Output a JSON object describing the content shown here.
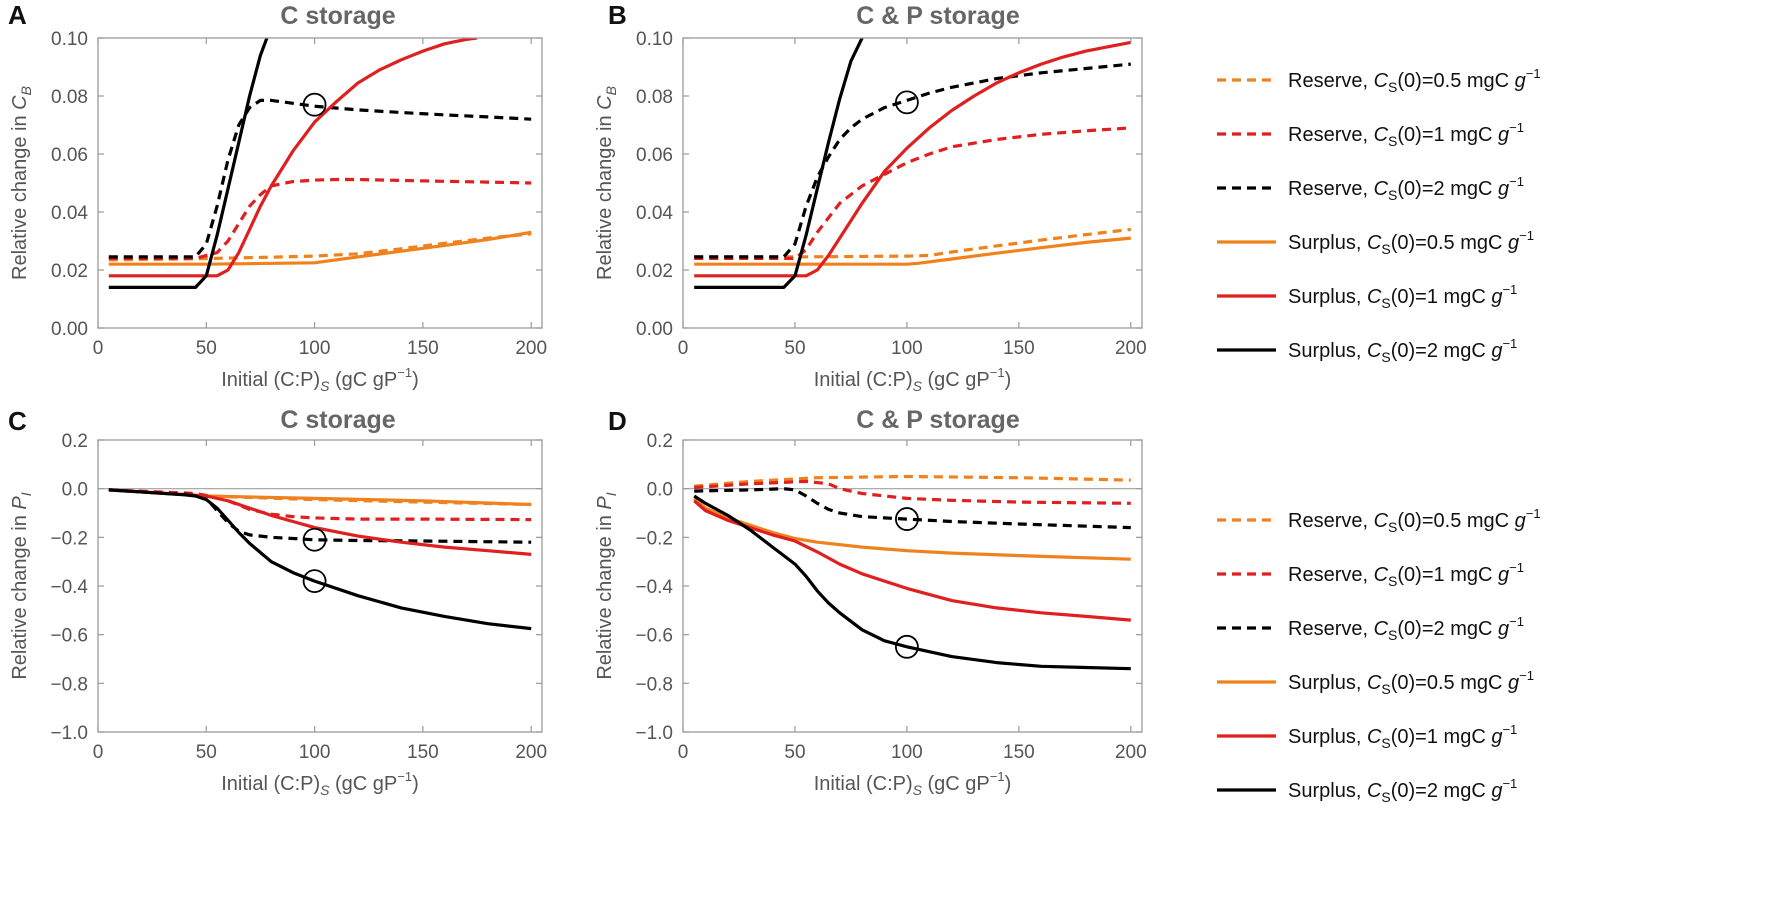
{
  "chart_data": [
    {
      "panel": "A",
      "type": "line",
      "title": "C storage",
      "xlabel": "Initial (C:P)",
      "xlabel_sub": "S",
      "xlabel_unit": "(gC gP",
      "xlabel_unit_sup": "−1",
      "xlabel_unit_end": ")",
      "ylabel": "Relative change in ",
      "ylabel_var": "C",
      "ylabel_sub": "B",
      "xlim": [
        0,
        205
      ],
      "ylim": [
        0.0,
        0.1
      ],
      "xticks": [
        "0",
        "50",
        "100",
        "150",
        "200"
      ],
      "yticks": [
        "0.00",
        "0.02",
        "0.04",
        "0.06",
        "0.08",
        "0.10"
      ],
      "series": [
        {
          "name": "Reserve, CS(0)=0.5 mgC g-1",
          "color": "#F0821E",
          "style": "dashed",
          "x": [
            5,
            40,
            60,
            80,
            100,
            120,
            140,
            160,
            180,
            200
          ],
          "y": [
            0.0235,
            0.0238,
            0.0241,
            0.0244,
            0.0248,
            0.0256,
            0.0273,
            0.0292,
            0.031,
            0.0325
          ]
        },
        {
          "name": "Reserve, CS(0)=1 mgC g-1",
          "color": "#E01F1F",
          "style": "dashed",
          "x": [
            5,
            45,
            55,
            60,
            65,
            70,
            75,
            80,
            90,
            100,
            110,
            120,
            140,
            160,
            180,
            200
          ],
          "y": [
            0.024,
            0.024,
            0.026,
            0.03,
            0.036,
            0.042,
            0.046,
            0.049,
            0.0505,
            0.051,
            0.0512,
            0.0512,
            0.0509,
            0.0506,
            0.0503,
            0.05
          ]
        },
        {
          "name": "Reserve, CS(0)=2 mgC g-1",
          "color": "#000000",
          "style": "dashed",
          "x": [
            5,
            45,
            50,
            55,
            60,
            65,
            70,
            75,
            80,
            90,
            100,
            120,
            140,
            160,
            180,
            200
          ],
          "y": [
            0.0245,
            0.0245,
            0.029,
            0.042,
            0.058,
            0.07,
            0.076,
            0.0785,
            0.0785,
            0.0775,
            0.0765,
            0.0752,
            0.0743,
            0.0735,
            0.0728,
            0.072
          ]
        },
        {
          "name": "Surplus, CS(0)=0.5 mgC g-1",
          "color": "#F0821E",
          "style": "solid",
          "x": [
            5,
            50,
            100,
            105,
            120,
            140,
            160,
            180,
            200
          ],
          "y": [
            0.022,
            0.022,
            0.0225,
            0.023,
            0.0245,
            0.0265,
            0.0285,
            0.0305,
            0.033
          ]
        },
        {
          "name": "Surplus, CS(0)=1 mgC g-1",
          "color": "#E01F1F",
          "style": "solid",
          "x": [
            5,
            55,
            60,
            65,
            70,
            75,
            80,
            90,
            100,
            110,
            120,
            130,
            140,
            150,
            160,
            170,
            175
          ],
          "y": [
            0.018,
            0.018,
            0.02,
            0.026,
            0.034,
            0.042,
            0.049,
            0.061,
            0.071,
            0.078,
            0.0845,
            0.089,
            0.0925,
            0.0955,
            0.098,
            0.0995,
            0.1
          ]
        },
        {
          "name": "Surplus, CS(0)=2 mgC g-1",
          "color": "#000000",
          "style": "solid",
          "x": [
            5,
            45,
            50,
            55,
            60,
            65,
            70,
            75,
            78
          ],
          "y": [
            0.014,
            0.014,
            0.018,
            0.032,
            0.048,
            0.064,
            0.08,
            0.094,
            0.1
          ]
        }
      ],
      "annotations": [
        {
          "type": "circle",
          "x": 100,
          "y": 0.077
        }
      ]
    },
    {
      "panel": "B",
      "type": "line",
      "title": "C & P storage",
      "xlabel": "Initial (C:P)",
      "xlabel_sub": "S",
      "xlabel_unit": "(gC gP",
      "xlabel_unit_sup": "−1",
      "xlabel_unit_end": ")",
      "ylabel": "Relative change in ",
      "ylabel_var": "C",
      "ylabel_sub": "B",
      "xlim": [
        0,
        205
      ],
      "ylim": [
        0.0,
        0.1
      ],
      "xticks": [
        "0",
        "50",
        "100",
        "150",
        "200"
      ],
      "yticks": [
        "0.00",
        "0.02",
        "0.04",
        "0.06",
        "0.08",
        "0.10"
      ],
      "series": [
        {
          "name": "Reserve, CS(0)=0.5 mgC g-1",
          "color": "#F0821E",
          "style": "dashed",
          "x": [
            5,
            50,
            100,
            110,
            120,
            140,
            160,
            180,
            200
          ],
          "y": [
            0.0245,
            0.0245,
            0.0248,
            0.025,
            0.0262,
            0.0283,
            0.0303,
            0.0322,
            0.034
          ]
        },
        {
          "name": "Reserve, CS(0)=1 mgC g-1",
          "color": "#E01F1F",
          "style": "dashed",
          "x": [
            5,
            50,
            55,
            60,
            65,
            70,
            75,
            80,
            90,
            100,
            110,
            120,
            140,
            160,
            180,
            200
          ],
          "y": [
            0.024,
            0.024,
            0.027,
            0.033,
            0.038,
            0.043,
            0.046,
            0.049,
            0.053,
            0.057,
            0.06,
            0.0625,
            0.065,
            0.0668,
            0.068,
            0.069
          ]
        },
        {
          "name": "Reserve, CS(0)=2 mgC g-1",
          "color": "#000000",
          "style": "dashed",
          "x": [
            5,
            45,
            50,
            55,
            60,
            65,
            70,
            75,
            80,
            90,
            100,
            110,
            120,
            140,
            160,
            180,
            200
          ],
          "y": [
            0.0245,
            0.0245,
            0.029,
            0.042,
            0.052,
            0.059,
            0.065,
            0.069,
            0.072,
            0.076,
            0.0785,
            0.081,
            0.083,
            0.086,
            0.088,
            0.0895,
            0.091
          ]
        },
        {
          "name": "Surplus, CS(0)=0.5 mgC g-1",
          "color": "#F0821E",
          "style": "solid",
          "x": [
            5,
            50,
            100,
            105,
            120,
            140,
            160,
            180,
            200
          ],
          "y": [
            0.022,
            0.022,
            0.022,
            0.0223,
            0.0238,
            0.0258,
            0.0277,
            0.0295,
            0.031
          ]
        },
        {
          "name": "Surplus, CS(0)=1 mgC g-1",
          "color": "#E01F1F",
          "style": "solid",
          "x": [
            5,
            55,
            60,
            65,
            70,
            75,
            80,
            90,
            100,
            110,
            120,
            130,
            140,
            150,
            160,
            170,
            180,
            190,
            200
          ],
          "y": [
            0.018,
            0.018,
            0.02,
            0.025,
            0.031,
            0.037,
            0.043,
            0.054,
            0.062,
            0.069,
            0.075,
            0.08,
            0.0845,
            0.088,
            0.091,
            0.0935,
            0.0955,
            0.097,
            0.0985
          ]
        },
        {
          "name": "Surplus, CS(0)=2 mgC g-1",
          "color": "#000000",
          "style": "solid",
          "x": [
            5,
            45,
            50,
            55,
            60,
            65,
            70,
            75,
            80
          ],
          "y": [
            0.014,
            0.014,
            0.018,
            0.032,
            0.048,
            0.064,
            0.079,
            0.092,
            0.1
          ]
        }
      ],
      "annotations": [
        {
          "type": "circle",
          "x": 100,
          "y": 0.0778
        }
      ]
    },
    {
      "panel": "C",
      "type": "line",
      "title": "C storage",
      "xlabel": "Initial (C:P)",
      "xlabel_sub": "S",
      "xlabel_unit": "(gC gP",
      "xlabel_unit_sup": "−1",
      "xlabel_unit_end": ")",
      "ylabel": "Relative change in ",
      "ylabel_var": "P",
      "ylabel_sub": "I",
      "xlim": [
        0,
        205
      ],
      "ylim": [
        -1.0,
        0.2
      ],
      "xticks": [
        "0",
        "50",
        "100",
        "150",
        "200"
      ],
      "yticks": [
        "−1.0",
        "−0.8",
        "−0.6",
        "−0.4",
        "−0.2",
        "0.0",
        "0.2"
      ],
      "zero_line": true,
      "series": [
        {
          "name": "Reserve, CS(0)=0.5 mgC g-1",
          "color": "#F0821E",
          "style": "dashed",
          "x": [
            5,
            50,
            100,
            150,
            200
          ],
          "y": [
            -0.005,
            -0.03,
            -0.045,
            -0.055,
            -0.065
          ]
        },
        {
          "name": "Reserve, CS(0)=1 mgC g-1",
          "color": "#E01F1F",
          "style": "dashed",
          "x": [
            5,
            45,
            55,
            60,
            70,
            80,
            90,
            100,
            120,
            150,
            200
          ],
          "y": [
            -0.005,
            -0.02,
            -0.035,
            -0.05,
            -0.085,
            -0.105,
            -0.115,
            -0.12,
            -0.125,
            -0.125,
            -0.127
          ]
        },
        {
          "name": "Reserve, CS(0)=2 mgC g-1",
          "color": "#000000",
          "style": "dashed",
          "x": [
            5,
            45,
            50,
            55,
            60,
            65,
            70,
            80,
            90,
            100,
            120,
            150,
            200
          ],
          "y": [
            -0.005,
            -0.025,
            -0.04,
            -0.09,
            -0.14,
            -0.175,
            -0.19,
            -0.2,
            -0.205,
            -0.21,
            -0.213,
            -0.215,
            -0.22
          ]
        },
        {
          "name": "Surplus, CS(0)=0.5 mgC g-1",
          "color": "#F0821E",
          "style": "solid",
          "x": [
            5,
            50,
            100,
            150,
            200
          ],
          "y": [
            -0.005,
            -0.03,
            -0.04,
            -0.05,
            -0.065
          ]
        },
        {
          "name": "Surplus, CS(0)=1 mgC g-1",
          "color": "#E01F1F",
          "style": "solid",
          "x": [
            5,
            50,
            60,
            70,
            80,
            90,
            100,
            120,
            140,
            160,
            180,
            200
          ],
          "y": [
            -0.005,
            -0.03,
            -0.05,
            -0.08,
            -0.11,
            -0.135,
            -0.16,
            -0.195,
            -0.22,
            -0.24,
            -0.255,
            -0.27
          ]
        },
        {
          "name": "Surplus, CS(0)=2 mgC g-1",
          "color": "#000000",
          "style": "solid",
          "x": [
            5,
            40,
            45,
            50,
            55,
            60,
            65,
            70,
            80,
            90,
            100,
            120,
            140,
            160,
            180,
            200
          ],
          "y": [
            -0.005,
            -0.025,
            -0.03,
            -0.045,
            -0.08,
            -0.13,
            -0.18,
            -0.225,
            -0.3,
            -0.345,
            -0.38,
            -0.44,
            -0.49,
            -0.525,
            -0.555,
            -0.575
          ]
        }
      ],
      "annotations": [
        {
          "type": "circle",
          "x": 100,
          "y": -0.21
        },
        {
          "type": "circle",
          "x": 100,
          "y": -0.38
        }
      ]
    },
    {
      "panel": "D",
      "type": "line",
      "title": "C & P storage",
      "xlabel": "Initial (C:P)",
      "xlabel_sub": "S",
      "xlabel_unit": "(gC gP",
      "xlabel_unit_sup": "−1",
      "xlabel_unit_end": ")",
      "ylabel": "Relative change in ",
      "ylabel_var": "P",
      "ylabel_sub": "I",
      "xlim": [
        0,
        205
      ],
      "ylim": [
        -1.0,
        0.2
      ],
      "xticks": [
        "0",
        "50",
        "100",
        "150",
        "200"
      ],
      "yticks": [
        "−1.0",
        "−0.8",
        "−0.6",
        "−0.4",
        "−0.2",
        "0.0",
        "0.2"
      ],
      "zero_line": true,
      "series": [
        {
          "name": "Reserve, CS(0)=0.5 mgC g-1",
          "color": "#F0821E",
          "style": "dashed",
          "x": [
            5,
            30,
            60,
            100,
            150,
            200
          ],
          "y": [
            0.01,
            0.03,
            0.045,
            0.05,
            0.045,
            0.035
          ]
        },
        {
          "name": "Reserve, CS(0)=1 mgC g-1",
          "color": "#E01F1F",
          "style": "dashed",
          "x": [
            5,
            30,
            55,
            65,
            70,
            80,
            100,
            120,
            150,
            200
          ],
          "y": [
            0.005,
            0.02,
            0.03,
            0.02,
            0.0,
            -0.02,
            -0.04,
            -0.048,
            -0.055,
            -0.06
          ]
        },
        {
          "name": "Reserve, CS(0)=2 mgC g-1",
          "color": "#000000",
          "style": "dashed",
          "x": [
            5,
            30,
            45,
            50,
            55,
            60,
            65,
            70,
            80,
            90,
            100,
            120,
            150,
            200
          ],
          "y": [
            -0.01,
            -0.005,
            0.0,
            -0.005,
            -0.03,
            -0.06,
            -0.085,
            -0.1,
            -0.115,
            -0.12,
            -0.125,
            -0.135,
            -0.145,
            -0.16
          ]
        },
        {
          "name": "Surplus, CS(0)=0.5 mgC g-1",
          "color": "#F0821E",
          "style": "solid",
          "x": [
            5,
            10,
            20,
            30,
            40,
            50,
            60,
            80,
            100,
            120,
            150,
            200
          ],
          "y": [
            -0.04,
            -0.08,
            -0.12,
            -0.15,
            -0.18,
            -0.205,
            -0.22,
            -0.24,
            -0.255,
            -0.265,
            -0.275,
            -0.29
          ]
        },
        {
          "name": "Surplus, CS(0)=1 mgC g-1",
          "color": "#E01F1F",
          "style": "solid",
          "x": [
            5,
            10,
            20,
            30,
            40,
            50,
            60,
            70,
            80,
            90,
            100,
            120,
            140,
            160,
            180,
            200
          ],
          "y": [
            -0.05,
            -0.09,
            -0.13,
            -0.16,
            -0.19,
            -0.215,
            -0.26,
            -0.31,
            -0.35,
            -0.38,
            -0.41,
            -0.46,
            -0.49,
            -0.51,
            -0.525,
            -0.54
          ]
        },
        {
          "name": "Surplus, CS(0)=2 mgC g-1",
          "color": "#000000",
          "style": "solid",
          "x": [
            5,
            10,
            20,
            30,
            40,
            50,
            55,
            60,
            65,
            70,
            80,
            90,
            100,
            120,
            140,
            160,
            180,
            200
          ],
          "y": [
            -0.03,
            -0.06,
            -0.11,
            -0.17,
            -0.24,
            -0.31,
            -0.36,
            -0.42,
            -0.47,
            -0.51,
            -0.58,
            -0.625,
            -0.65,
            -0.69,
            -0.715,
            -0.73,
            -0.735,
            -0.74
          ]
        }
      ],
      "annotations": [
        {
          "type": "circle",
          "x": 100,
          "y": -0.125
        },
        {
          "type": "circle",
          "x": 100,
          "y": -0.65
        }
      ]
    }
  ],
  "legend": {
    "entries": [
      {
        "prefix": "Reserve, ",
        "var": "C",
        "sub": "S",
        "value": "(0)=0.5 mgC ",
        "unit": "g",
        "sup": "−1",
        "color": "#F0821E",
        "style": "dashed"
      },
      {
        "prefix": "Reserve, ",
        "var": "C",
        "sub": "S",
        "value": "(0)=1 mgC ",
        "unit": "g",
        "sup": "−1",
        "color": "#E01F1F",
        "style": "dashed"
      },
      {
        "prefix": "Reserve, ",
        "var": "C",
        "sub": "S",
        "value": "(0)=2 mgC ",
        "unit": "g",
        "sup": "−1",
        "color": "#000000",
        "style": "dashed"
      },
      {
        "prefix": "Surplus, ",
        "var": "C",
        "sub": "S",
        "value": "(0)=0.5 mgC ",
        "unit": "g",
        "sup": "−1",
        "color": "#F0821E",
        "style": "solid"
      },
      {
        "prefix": "Surplus, ",
        "var": "C",
        "sub": "S",
        "value": "(0)=1 mgC ",
        "unit": "g",
        "sup": "−1",
        "color": "#E01F1F",
        "style": "solid"
      },
      {
        "prefix": "Surplus, ",
        "var": "C",
        "sub": "S",
        "value": "(0)=2 mgC ",
        "unit": "g",
        "sup": "−1",
        "color": "#000000",
        "style": "solid"
      }
    ]
  },
  "colors": {
    "frame": "#9a9a9a",
    "zero_line": "#a0a0a0",
    "text": "#555555"
  }
}
